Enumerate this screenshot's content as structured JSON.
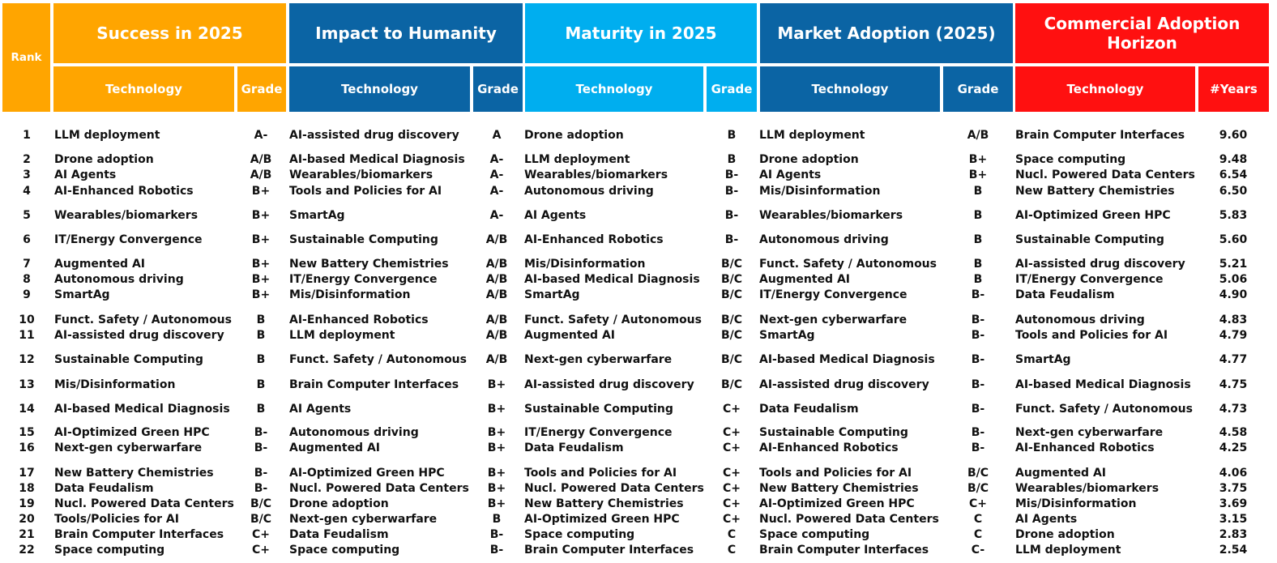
{
  "headers": {
    "rank": "Rank",
    "groups": [
      "Success in 2025",
      "Impact to Humanity",
      "Maturity in 2025",
      "Market Adoption (2025)",
      "Commercial Adoption Horizon"
    ],
    "technology": "Technology",
    "grade": "Grade",
    "years": "#Years"
  },
  "colors": {
    "orange": "#FFA500",
    "navy": "#0B64A4",
    "sky": "#00AEEF",
    "red": "#FF1010"
  },
  "rows": [
    {
      "rank": "1",
      "success_tech": "LLM deployment",
      "success_grade": "A-",
      "impact_tech": "AI-assisted drug discovery",
      "impact_grade": "A",
      "maturity_tech": "Drone adoption",
      "maturity_grade": "B",
      "market_tech": "LLM deployment",
      "market_grade": "A/B",
      "horizon_tech": "Brain Computer Interfaces",
      "horizon_years": "9.60"
    },
    {
      "rank": "2",
      "success_tech": "Drone adoption",
      "success_grade": "A/B",
      "impact_tech": "AI-based Medical Diagnosis",
      "impact_grade": "A-",
      "maturity_tech": "LLM deployment",
      "maturity_grade": "B",
      "market_tech": "Drone adoption",
      "market_grade": "B+",
      "horizon_tech": "Space computing",
      "horizon_years": "9.48"
    },
    {
      "rank": "3",
      "success_tech": "AI Agents",
      "success_grade": "A/B",
      "impact_tech": "Wearables/biomarkers",
      "impact_grade": "A-",
      "maturity_tech": "Wearables/biomarkers",
      "maturity_grade": "B-",
      "market_tech": "AI Agents",
      "market_grade": "B+",
      "horizon_tech": "Nucl. Powered Data Centers",
      "horizon_years": "6.54"
    },
    {
      "rank": "4",
      "success_tech": "AI-Enhanced Robotics",
      "success_grade": "B+",
      "impact_tech": "Tools and Policies for AI",
      "impact_grade": "A-",
      "maturity_tech": "Autonomous driving",
      "maturity_grade": "B-",
      "market_tech": "Mis/Disinformation",
      "market_grade": "B",
      "horizon_tech": "New Battery Chemistries",
      "horizon_years": "6.50"
    },
    {
      "rank": "5",
      "success_tech": "Wearables/biomarkers",
      "success_grade": "B+",
      "impact_tech": "SmartAg",
      "impact_grade": "A-",
      "maturity_tech": "AI Agents",
      "maturity_grade": "B-",
      "market_tech": "Wearables/biomarkers",
      "market_grade": "B",
      "horizon_tech": "AI-Optimized Green HPC",
      "horizon_years": "5.83"
    },
    {
      "rank": "6",
      "success_tech": "IT/Energy Convergence",
      "success_grade": "B+",
      "impact_tech": "Sustainable Computing",
      "impact_grade": "A/B",
      "maturity_tech": "AI-Enhanced Robotics",
      "maturity_grade": "B-",
      "market_tech": "Autonomous driving",
      "market_grade": "B",
      "horizon_tech": "Sustainable Computing",
      "horizon_years": "5.60"
    },
    {
      "rank": "7",
      "success_tech": "Augmented AI",
      "success_grade": "B+",
      "impact_tech": "New Battery Chemistries",
      "impact_grade": "A/B",
      "maturity_tech": "Mis/Disinformation",
      "maturity_grade": "B/C",
      "market_tech": "Funct. Safety / Autonomous",
      "market_grade": "B",
      "horizon_tech": "AI-assisted drug discovery",
      "horizon_years": "5.21"
    },
    {
      "rank": "8",
      "success_tech": "Autonomous driving",
      "success_grade": "B+",
      "impact_tech": "IT/Energy Convergence",
      "impact_grade": "A/B",
      "maturity_tech": "AI-based Medical Diagnosis",
      "maturity_grade": "B/C",
      "market_tech": "Augmented AI",
      "market_grade": "B",
      "horizon_tech": "IT/Energy Convergence",
      "horizon_years": "5.06"
    },
    {
      "rank": "9",
      "success_tech": "SmartAg",
      "success_grade": "B+",
      "impact_tech": "Mis/Disinformation",
      "impact_grade": "A/B",
      "maturity_tech": "SmartAg",
      "maturity_grade": "B/C",
      "market_tech": "IT/Energy Convergence",
      "market_grade": "B-",
      "horizon_tech": "Data Feudalism",
      "horizon_years": "4.90"
    },
    {
      "rank": "10",
      "success_tech": "Funct. Safety / Autonomous",
      "success_grade": "B",
      "impact_tech": "AI-Enhanced Robotics",
      "impact_grade": "A/B",
      "maturity_tech": "Funct. Safety / Autonomous",
      "maturity_grade": "B/C",
      "market_tech": "Next-gen cyberwarfare",
      "market_grade": "B-",
      "horizon_tech": "Autonomous driving",
      "horizon_years": "4.83"
    },
    {
      "rank": "11",
      "success_tech": "AI-assisted drug discovery",
      "success_grade": "B",
      "impact_tech": "LLM deployment",
      "impact_grade": "A/B",
      "maturity_tech": "Augmented AI",
      "maturity_grade": "B/C",
      "market_tech": "SmartAg",
      "market_grade": "B-",
      "horizon_tech": "Tools and Policies for AI",
      "horizon_years": "4.79"
    },
    {
      "rank": "12",
      "success_tech": "Sustainable Computing",
      "success_grade": "B",
      "impact_tech": "Funct. Safety / Autonomous",
      "impact_grade": "A/B",
      "maturity_tech": "Next-gen cyberwarfare",
      "maturity_grade": "B/C",
      "market_tech": "AI-based Medical Diagnosis",
      "market_grade": "B-",
      "horizon_tech": "SmartAg",
      "horizon_years": "4.77"
    },
    {
      "rank": "13",
      "success_tech": "Mis/Disinformation",
      "success_grade": "B",
      "impact_tech": "Brain Computer Interfaces",
      "impact_grade": "B+",
      "maturity_tech": "AI-assisted drug discovery",
      "maturity_grade": "B/C",
      "market_tech": "AI-assisted drug discovery",
      "market_grade": "B-",
      "horizon_tech": "AI-based Medical Diagnosis",
      "horizon_years": "4.75"
    },
    {
      "rank": "14",
      "success_tech": "AI-based Medical Diagnosis",
      "success_grade": "B",
      "impact_tech": "AI Agents",
      "impact_grade": "B+",
      "maturity_tech": "Sustainable Computing",
      "maturity_grade": "C+",
      "market_tech": "Data Feudalism",
      "market_grade": "B-",
      "horizon_tech": "Funct. Safety / Autonomous",
      "horizon_years": "4.73"
    },
    {
      "rank": "15",
      "success_tech": "AI-Optimized Green HPC",
      "success_grade": "B-",
      "impact_tech": "Autonomous driving",
      "impact_grade": "B+",
      "maturity_tech": "IT/Energy Convergence",
      "maturity_grade": "C+",
      "market_tech": "Sustainable Computing",
      "market_grade": "B-",
      "horizon_tech": "Next-gen cyberwarfare",
      "horizon_years": "4.58"
    },
    {
      "rank": "16",
      "success_tech": "Next-gen cyberwarfare",
      "success_grade": "B-",
      "impact_tech": "Augmented AI",
      "impact_grade": "B+",
      "maturity_tech": "Data Feudalism",
      "maturity_grade": "C+",
      "market_tech": "AI-Enhanced Robotics",
      "market_grade": "B-",
      "horizon_tech": "AI-Enhanced Robotics",
      "horizon_years": "4.25"
    },
    {
      "rank": "17",
      "success_tech": "New Battery Chemistries",
      "success_grade": "B-",
      "impact_tech": "AI-Optimized Green HPC",
      "impact_grade": "B+",
      "maturity_tech": "Tools and Policies for AI",
      "maturity_grade": "C+",
      "market_tech": "Tools and Policies for AI",
      "market_grade": "B/C",
      "horizon_tech": "Augmented AI",
      "horizon_years": "4.06"
    },
    {
      "rank": "18",
      "success_tech": "Data Feudalism",
      "success_grade": "B-",
      "impact_tech": "Nucl. Powered Data Centers",
      "impact_grade": "B+",
      "maturity_tech": "Nucl. Powered Data Centers",
      "maturity_grade": "C+",
      "market_tech": "New Battery Chemistries",
      "market_grade": "B/C",
      "horizon_tech": "Wearables/biomarkers",
      "horizon_years": "3.75"
    },
    {
      "rank": "19",
      "success_tech": "Nucl. Powered Data Centers",
      "success_grade": "B/C",
      "impact_tech": "Drone adoption",
      "impact_grade": "B+",
      "maturity_tech": "New Battery Chemistries",
      "maturity_grade": "C+",
      "market_tech": "AI-Optimized Green HPC",
      "market_grade": "C+",
      "horizon_tech": "Mis/Disinformation",
      "horizon_years": "3.69"
    },
    {
      "rank": "20",
      "success_tech": "Tools/Policies for AI",
      "success_grade": "B/C",
      "impact_tech": "Next-gen cyberwarfare",
      "impact_grade": "B",
      "maturity_tech": "AI-Optimized Green HPC",
      "maturity_grade": "C+",
      "market_tech": "Nucl. Powered Data Centers",
      "market_grade": "C",
      "horizon_tech": "AI Agents",
      "horizon_years": "3.15"
    },
    {
      "rank": "21",
      "success_tech": "Brain Computer Interfaces",
      "success_grade": "C+",
      "impact_tech": "Data Feudalism",
      "impact_grade": "B-",
      "maturity_tech": "Space computing",
      "maturity_grade": "C",
      "market_tech": "Space computing",
      "market_grade": "C",
      "horizon_tech": "Drone adoption",
      "horizon_years": "2.83"
    },
    {
      "rank": "22",
      "success_tech": "Space computing",
      "success_grade": "C+",
      "impact_tech": "Space computing",
      "impact_grade": "B-",
      "maturity_tech": "Brain Computer Interfaces",
      "maturity_grade": "C",
      "market_tech": "Brain Computer Interfaces",
      "market_grade": "C-",
      "horizon_tech": "LLM deployment",
      "horizon_years": "2.54"
    }
  ]
}
